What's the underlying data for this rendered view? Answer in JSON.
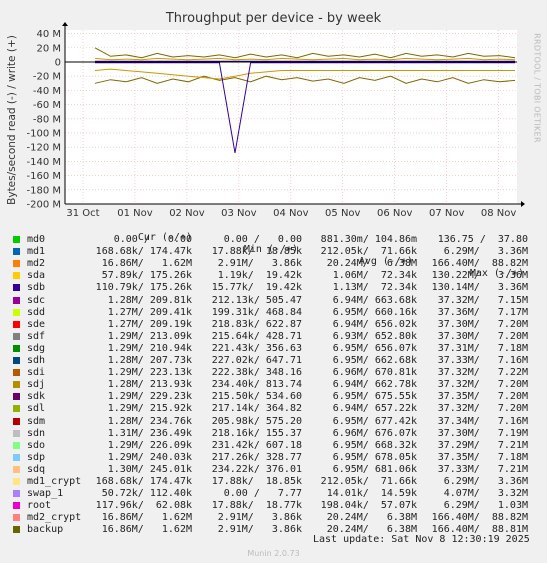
{
  "chart_data": {
    "type": "line",
    "title": "Throughput per device - by week",
    "ylabel": "Bytes/second read (-) / write (+)",
    "ylim": [
      -200,
      45
    ],
    "y_ticks": [
      {
        "v": 40,
        "label": "40 M"
      },
      {
        "v": 20,
        "label": "20 M"
      },
      {
        "v": 0,
        "label": "0"
      },
      {
        "v": -20,
        "label": "-20 M"
      },
      {
        "v": -40,
        "label": "-40 M"
      },
      {
        "v": -60,
        "label": "-60 M"
      },
      {
        "v": -80,
        "label": "-80 M"
      },
      {
        "v": -100,
        "label": "-100 M"
      },
      {
        "v": -120,
        "label": "-120 M"
      },
      {
        "v": -140,
        "label": "-140 M"
      },
      {
        "v": -160,
        "label": "-160 M"
      },
      {
        "v": -180,
        "label": "-180 M"
      },
      {
        "v": -200,
        "label": "-200 M"
      }
    ],
    "x_ticks": [
      "31 Oct",
      "01 Nov",
      "02 Nov",
      "03 Nov",
      "04 Nov",
      "05 Nov",
      "06 Nov",
      "07 Nov",
      "08 Nov"
    ],
    "grid": true,
    "series": [
      {
        "color": "#806600",
        "write": [
          20,
          8,
          10,
          6,
          12,
          7,
          9,
          7,
          10,
          6,
          11,
          7,
          10,
          6,
          12,
          8,
          10,
          7,
          11,
          6,
          12,
          8,
          10,
          7,
          12,
          8,
          9,
          6
        ],
        "read": [
          -30,
          -25,
          -28,
          -22,
          -30,
          -24,
          -28,
          -20,
          -26,
          -22,
          -28,
          -20,
          -25,
          -22,
          -27,
          -24,
          -30,
          -22,
          -26,
          -20,
          -30,
          -24,
          -28,
          -22,
          -30,
          -25,
          -28,
          -26
        ]
      },
      {
        "color": "#cc9900",
        "write": [
          5,
          3,
          4,
          3,
          5,
          4,
          3,
          4,
          5,
          3,
          4,
          3,
          5,
          4,
          3,
          4,
          5,
          3,
          4,
          3,
          5,
          4,
          3,
          4,
          5,
          3,
          4,
          3
        ],
        "read": [
          -12,
          -10,
          -12,
          -14,
          -16,
          -18,
          -20,
          -22,
          -24,
          -20,
          -16,
          -14,
          -12,
          -12,
          -12,
          -12,
          -12,
          -12,
          -12,
          -12,
          -12,
          -12,
          -12,
          -12,
          -12,
          -12,
          -12,
          -12
        ]
      },
      {
        "color": "#330099",
        "write": [
          1,
          1,
          1,
          1,
          1,
          1,
          1,
          1,
          1,
          1,
          1,
          1,
          1,
          1,
          1,
          1,
          1,
          1,
          1,
          1,
          1,
          1,
          1,
          1,
          1,
          1,
          1,
          1
        ],
        "read": [
          -1,
          -1,
          -1,
          -1,
          -1,
          -1,
          -1,
          -1,
          -1,
          -128,
          -1,
          -1,
          -1,
          -1,
          -1,
          -1,
          -1,
          -1,
          -1,
          -1,
          -1,
          -1,
          -1,
          -1,
          -1,
          -1,
          -1,
          -1
        ]
      }
    ]
  },
  "side_label": "RRDTOOL / TOBI OETIKER",
  "legend": {
    "headers": {
      "cur": "Cur (-/+)",
      "min": "Min (-/+)",
      "avg": "Avg (-/+)",
      "max": "Max (-/+)"
    },
    "rows": [
      {
        "name": "md0",
        "color": "#00cc00",
        "cur": "0.00 /   0.00",
        "min": "0.00 /   0.00",
        "avg": "881.30m/ 104.86m",
        "max": "136.75 /  37.80"
      },
      {
        "name": "md1",
        "color": "#0066b3",
        "cur": "168.68k/ 174.47k",
        "min": "17.88k/  18.85k",
        "avg": "212.05k/  71.66k",
        "max": "6.29M/   3.36M"
      },
      {
        "name": "md2",
        "color": "#ff8000",
        "cur": "16.86M/   1.62M",
        "min": "2.91M/   3.86k",
        "avg": "20.24M/   6.38M",
        "max": "166.40M/  88.82M"
      },
      {
        "name": "sda",
        "color": "#ffcc00",
        "cur": "57.89k/ 175.26k",
        "min": "1.19k/  19.42k",
        "avg": "1.06M/  72.34k",
        "max": "130.22M/   3.36M"
      },
      {
        "name": "sdb",
        "color": "#330099",
        "cur": "110.79k/ 175.26k",
        "min": "15.77k/  19.42k",
        "avg": "1.13M/  72.34k",
        "max": "130.14M/   3.36M"
      },
      {
        "name": "sdc",
        "color": "#990099",
        "cur": "1.28M/ 209.81k",
        "min": "212.13k/ 505.47",
        "avg": "6.94M/ 663.68k",
        "max": "37.32M/   7.15M"
      },
      {
        "name": "sdd",
        "color": "#ccff00",
        "cur": "1.27M/ 209.41k",
        "min": "199.31k/ 468.84",
        "avg": "6.95M/ 660.16k",
        "max": "37.36M/   7.17M"
      },
      {
        "name": "sde",
        "color": "#ff0000",
        "cur": "1.27M/ 209.19k",
        "min": "218.83k/ 622.87",
        "avg": "6.94M/ 656.02k",
        "max": "37.30M/   7.20M"
      },
      {
        "name": "sdf",
        "color": "#808080",
        "cur": "1.29M/ 213.09k",
        "min": "215.64k/ 428.71",
        "avg": "6.93M/ 652.80k",
        "max": "37.30M/   7.20M"
      },
      {
        "name": "sdg",
        "color": "#008f00",
        "cur": "1.29M/ 210.94k",
        "min": "221.43k/ 356.63",
        "avg": "6.95M/ 656.07k",
        "max": "37.31M/   7.18M"
      },
      {
        "name": "sdh",
        "color": "#00487d",
        "cur": "1.28M/ 207.73k",
        "min": "227.02k/ 647.71",
        "avg": "6.95M/ 662.68k",
        "max": "37.33M/   7.16M"
      },
      {
        "name": "sdi",
        "color": "#b35a00",
        "cur": "1.29M/ 223.13k",
        "min": "222.38k/ 348.16",
        "avg": "6.96M/ 670.81k",
        "max": "37.32M/   7.22M"
      },
      {
        "name": "sdj",
        "color": "#b38f00",
        "cur": "1.28M/ 213.93k",
        "min": "234.40k/ 813.74",
        "avg": "6.94M/ 662.78k",
        "max": "37.32M/   7.20M"
      },
      {
        "name": "sdk",
        "color": "#6b006b",
        "cur": "1.29M/ 229.23k",
        "min": "215.50k/ 534.60",
        "avg": "6.95M/ 675.55k",
        "max": "37.35M/   7.20M"
      },
      {
        "name": "sdl",
        "color": "#8fb300",
        "cur": "1.29M/ 215.92k",
        "min": "217.14k/ 364.82",
        "avg": "6.94M/ 657.22k",
        "max": "37.32M/   7.20M"
      },
      {
        "name": "sdm",
        "color": "#b30000",
        "cur": "1.28M/ 234.76k",
        "min": "205.98k/ 575.20",
        "avg": "6.95M/ 677.42k",
        "max": "37.34M/   7.16M"
      },
      {
        "name": "sdn",
        "color": "#bebebe",
        "cur": "1.31M/ 236.49k",
        "min": "218.16k/ 155.37",
        "avg": "6.96M/ 676.07k",
        "max": "37.30M/   7.19M"
      },
      {
        "name": "sdo",
        "color": "#80ff80",
        "cur": "1.29M/ 226.09k",
        "min": "231.42k/ 607.18",
        "avg": "6.95M/ 668.32k",
        "max": "37.29M/   7.21M"
      },
      {
        "name": "sdp",
        "color": "#80c9ff",
        "cur": "1.29M/ 240.03k",
        "min": "217.26k/ 328.77",
        "avg": "6.95M/ 678.05k",
        "max": "37.35M/   7.18M"
      },
      {
        "name": "sdq",
        "color": "#ffc080",
        "cur": "1.30M/ 245.01k",
        "min": "234.22k/ 376.01",
        "avg": "6.95M/ 681.06k",
        "max": "37.33M/   7.21M"
      },
      {
        "name": "md1_crypt",
        "color": "#ffe680",
        "cur": "168.68k/ 174.47k",
        "min": "17.88k/  18.85k",
        "avg": "212.05k/  71.66k",
        "max": "6.29M/   3.36M"
      },
      {
        "name": "swap_1",
        "color": "#aa80ff",
        "cur": "50.72k/ 112.40k",
        "min": "0.00 /   7.77",
        "avg": "14.01k/  14.59k",
        "max": "4.07M/   3.32M"
      },
      {
        "name": "root",
        "color": "#ee00cc",
        "cur": "117.96k/  62.08k",
        "min": "17.88k/  18.77k",
        "avg": "198.04k/  57.07k",
        "max": "6.29M/   1.03M"
      },
      {
        "name": "md2_crypt",
        "color": "#ff8080",
        "cur": "16.86M/   1.62M",
        "min": "2.91M/   3.86k",
        "avg": "20.24M/   6.38M",
        "max": "166.40M/  88.82M"
      },
      {
        "name": "backup",
        "color": "#666600",
        "cur": "16.86M/   1.62M",
        "min": "2.91M/   3.86k",
        "avg": "20.24M/   6.38M",
        "max": "166.40M/  88.81M"
      }
    ]
  },
  "footer": {
    "last_update": "Last update: Sat Nov  8 12:30:19 2025",
    "munin": "Munin 2.0.73"
  }
}
